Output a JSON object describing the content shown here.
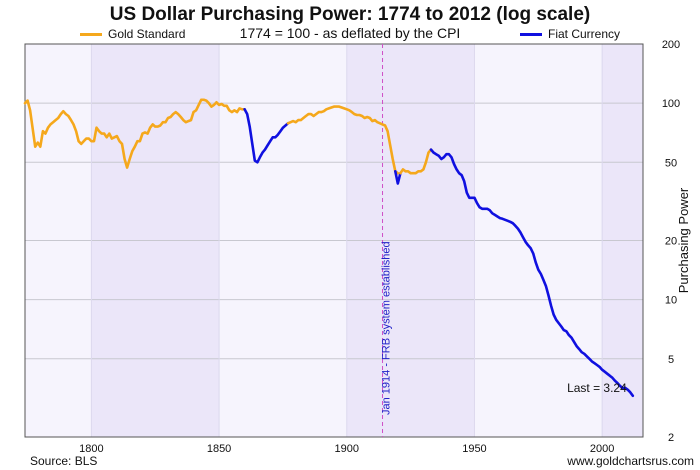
{
  "title": "US Dollar Purchasing Power: 1774 to 2012 (log scale)",
  "subtitle": "1774 = 100 - as deflated by the CPI",
  "source": "Source: BLS",
  "website": "www.goldchartsrus.com",
  "colors": {
    "gold_standard": "#f5a81c",
    "fiat": "#1010e0",
    "marker": "#d04fc8",
    "band_light": "#f6f4fd",
    "band_dark": "#ebe6f9",
    "grid": "#c8c8d0"
  },
  "chart_data": {
    "type": "line",
    "title": "US Dollar Purchasing Power: 1774 to 2012 (log scale)",
    "ylabel": "Purchasing Power",
    "xlabel": "",
    "y_scale": "log",
    "xlim": [
      1774,
      2016
    ],
    "ylim": [
      2,
      200
    ],
    "x_ticks": [
      1800,
      1850,
      1900,
      1950,
      2000
    ],
    "y_ticks": [
      2,
      5,
      10,
      20,
      50,
      100,
      200
    ],
    "legend": "top",
    "grid": true,
    "annotations": [
      {
        "text": "Jan 1914 - FRB system established",
        "x": 1914
      },
      {
        "text": "Last = 3.24",
        "x": 2012,
        "y": 3.24
      }
    ],
    "series": [
      {
        "name": "Gold Standard",
        "color": "#f5a81c",
        "points": [
          [
            1774,
            100
          ],
          [
            1775,
            103
          ],
          [
            1776,
            92
          ],
          [
            1777,
            74
          ],
          [
            1778,
            60
          ],
          [
            1779,
            63
          ],
          [
            1780,
            60
          ],
          [
            1781,
            72
          ],
          [
            1782,
            70
          ],
          [
            1783,
            75
          ],
          [
            1784,
            78
          ],
          [
            1785,
            80
          ],
          [
            1786,
            82
          ],
          [
            1787,
            84
          ],
          [
            1788,
            88
          ],
          [
            1789,
            91
          ],
          [
            1790,
            88
          ],
          [
            1791,
            86
          ],
          [
            1792,
            82
          ],
          [
            1793,
            78
          ],
          [
            1794,
            72
          ],
          [
            1795,
            64
          ],
          [
            1796,
            62
          ],
          [
            1797,
            64
          ],
          [
            1798,
            66
          ],
          [
            1799,
            66
          ],
          [
            1800,
            64
          ],
          [
            1801,
            64
          ],
          [
            1802,
            75
          ],
          [
            1803,
            72
          ],
          [
            1804,
            70
          ],
          [
            1805,
            70
          ],
          [
            1806,
            67
          ],
          [
            1807,
            70
          ],
          [
            1808,
            66
          ],
          [
            1809,
            67
          ],
          [
            1810,
            68
          ],
          [
            1811,
            64
          ],
          [
            1812,
            62
          ],
          [
            1813,
            52
          ],
          [
            1814,
            47
          ],
          [
            1815,
            52
          ],
          [
            1816,
            57
          ],
          [
            1817,
            60
          ],
          [
            1818,
            64
          ],
          [
            1819,
            64
          ],
          [
            1820,
            70
          ],
          [
            1821,
            71
          ],
          [
            1822,
            70
          ],
          [
            1823,
            75
          ],
          [
            1824,
            78
          ],
          [
            1825,
            76
          ],
          [
            1826,
            76
          ],
          [
            1827,
            77
          ],
          [
            1828,
            80
          ],
          [
            1829,
            80
          ],
          [
            1830,
            84
          ],
          [
            1831,
            85
          ],
          [
            1832,
            88
          ],
          [
            1833,
            90
          ],
          [
            1834,
            88
          ],
          [
            1835,
            85
          ],
          [
            1836,
            82
          ],
          [
            1837,
            80
          ],
          [
            1838,
            81
          ],
          [
            1839,
            82
          ],
          [
            1840,
            90
          ],
          [
            1841,
            92
          ],
          [
            1842,
            98
          ],
          [
            1843,
            104
          ],
          [
            1844,
            104
          ],
          [
            1845,
            103
          ],
          [
            1846,
            100
          ],
          [
            1847,
            96
          ],
          [
            1848,
            98
          ],
          [
            1849,
            101
          ],
          [
            1850,
            98
          ],
          [
            1851,
            99
          ],
          [
            1852,
            97
          ],
          [
            1853,
            97
          ],
          [
            1854,
            92
          ],
          [
            1855,
            90
          ],
          [
            1856,
            92
          ],
          [
            1857,
            90
          ],
          [
            1858,
            94
          ],
          [
            1859,
            93
          ],
          [
            1860,
            93
          ]
        ]
      },
      {
        "name": "Fiat Currency",
        "color": "#1010e0",
        "points": [
          [
            1860,
            93
          ],
          [
            1861,
            88
          ],
          [
            1862,
            76
          ],
          [
            1863,
            62
          ],
          [
            1864,
            51
          ],
          [
            1865,
            50
          ],
          [
            1866,
            53
          ],
          [
            1867,
            56
          ],
          [
            1868,
            58
          ],
          [
            1869,
            61
          ],
          [
            1870,
            64
          ],
          [
            1871,
            67
          ],
          [
            1872,
            67
          ],
          [
            1873,
            69
          ],
          [
            1874,
            72
          ],
          [
            1875,
            75
          ],
          [
            1876,
            77
          ],
          [
            1877,
            79
          ]
        ]
      },
      {
        "name": "Gold Standard",
        "color": "#f5a81c",
        "points": [
          [
            1877,
            79
          ],
          [
            1878,
            80
          ],
          [
            1879,
            81
          ],
          [
            1880,
            80
          ],
          [
            1881,
            82
          ],
          [
            1882,
            82
          ],
          [
            1883,
            84
          ],
          [
            1884,
            86
          ],
          [
            1885,
            88
          ],
          [
            1886,
            88
          ],
          [
            1887,
            86
          ],
          [
            1888,
            88
          ],
          [
            1889,
            90
          ],
          [
            1890,
            90
          ],
          [
            1891,
            91
          ],
          [
            1892,
            93
          ],
          [
            1893,
            94
          ],
          [
            1894,
            95
          ],
          [
            1895,
            96
          ],
          [
            1896,
            96
          ],
          [
            1897,
            96
          ],
          [
            1898,
            95
          ],
          [
            1899,
            94
          ],
          [
            1900,
            93
          ],
          [
            1901,
            92
          ],
          [
            1902,
            90
          ],
          [
            1903,
            88
          ],
          [
            1904,
            87
          ],
          [
            1905,
            87
          ],
          [
            1906,
            86
          ],
          [
            1907,
            84
          ],
          [
            1908,
            85
          ],
          [
            1909,
            84
          ],
          [
            1910,
            81
          ],
          [
            1911,
            82
          ],
          [
            1912,
            80
          ],
          [
            1913,
            79
          ],
          [
            1914,
            78
          ],
          [
            1915,
            77
          ],
          [
            1916,
            72
          ],
          [
            1917,
            61
          ],
          [
            1918,
            52
          ],
          [
            1919,
            45
          ],
          [
            1920,
            44
          ]
        ]
      },
      {
        "name": "Fiat Currency",
        "color": "#1010e0",
        "points": [
          [
            1919,
            45
          ],
          [
            1920,
            39
          ],
          [
            1921,
            44
          ]
        ]
      },
      {
        "name": "Gold Standard",
        "color": "#f5a81c",
        "points": [
          [
            1921,
            44
          ],
          [
            1922,
            46
          ],
          [
            1923,
            45
          ],
          [
            1924,
            45
          ],
          [
            1925,
            44
          ],
          [
            1926,
            44
          ],
          [
            1927,
            44
          ],
          [
            1928,
            45
          ],
          [
            1929,
            45
          ],
          [
            1930,
            46
          ],
          [
            1931,
            50
          ],
          [
            1932,
            56
          ],
          [
            1933,
            58
          ]
        ]
      },
      {
        "name": "Fiat Currency",
        "color": "#1010e0",
        "points": [
          [
            1933,
            58
          ],
          [
            1934,
            56
          ],
          [
            1935,
            55
          ],
          [
            1936,
            54
          ],
          [
            1937,
            52
          ],
          [
            1938,
            53
          ],
          [
            1939,
            55
          ],
          [
            1940,
            55
          ],
          [
            1941,
            53
          ],
          [
            1942,
            49
          ],
          [
            1943,
            46
          ],
          [
            1944,
            44
          ],
          [
            1945,
            43
          ],
          [
            1946,
            40
          ],
          [
            1947,
            35
          ],
          [
            1948,
            33
          ],
          [
            1949,
            33
          ],
          [
            1950,
            33
          ],
          [
            1951,
            31
          ],
          [
            1952,
            29.5
          ],
          [
            1953,
            29
          ],
          [
            1954,
            29
          ],
          [
            1955,
            29
          ],
          [
            1956,
            28.5
          ],
          [
            1957,
            27.5
          ],
          [
            1958,
            27
          ],
          [
            1959,
            26.5
          ],
          [
            1960,
            26
          ],
          [
            1961,
            25.8
          ],
          [
            1962,
            25.5
          ],
          [
            1963,
            25.2
          ],
          [
            1964,
            24.9
          ],
          [
            1965,
            24.5
          ],
          [
            1966,
            23.8
          ],
          [
            1967,
            23
          ],
          [
            1968,
            22
          ],
          [
            1969,
            20.8
          ],
          [
            1970,
            19.7
          ],
          [
            1971,
            18.9
          ],
          [
            1972,
            18.3
          ],
          [
            1973,
            17.2
          ],
          [
            1974,
            15.5
          ],
          [
            1975,
            14.2
          ],
          [
            1976,
            13.5
          ],
          [
            1977,
            12.6
          ],
          [
            1978,
            11.7
          ],
          [
            1979,
            10.5
          ],
          [
            1980,
            9.3
          ],
          [
            1981,
            8.4
          ],
          [
            1982,
            7.9
          ],
          [
            1983,
            7.6
          ],
          [
            1984,
            7.3
          ],
          [
            1985,
            7.0
          ],
          [
            1986,
            6.9
          ],
          [
            1987,
            6.6
          ],
          [
            1988,
            6.4
          ],
          [
            1989,
            6.1
          ],
          [
            1990,
            5.8
          ],
          [
            1991,
            5.6
          ],
          [
            1992,
            5.4
          ],
          [
            1993,
            5.3
          ],
          [
            1994,
            5.15
          ],
          [
            1995,
            5.0
          ],
          [
            1996,
            4.85
          ],
          [
            1997,
            4.75
          ],
          [
            1998,
            4.65
          ],
          [
            1999,
            4.55
          ],
          [
            2000,
            4.4
          ],
          [
            2001,
            4.3
          ],
          [
            2002,
            4.2
          ],
          [
            2003,
            4.1
          ],
          [
            2004,
            4.0
          ],
          [
            2005,
            3.87
          ],
          [
            2006,
            3.76
          ],
          [
            2007,
            3.64
          ],
          [
            2008,
            3.55
          ],
          [
            2009,
            3.56
          ],
          [
            2010,
            3.48
          ],
          [
            2011,
            3.38
          ],
          [
            2012,
            3.24
          ]
        ]
      }
    ]
  }
}
